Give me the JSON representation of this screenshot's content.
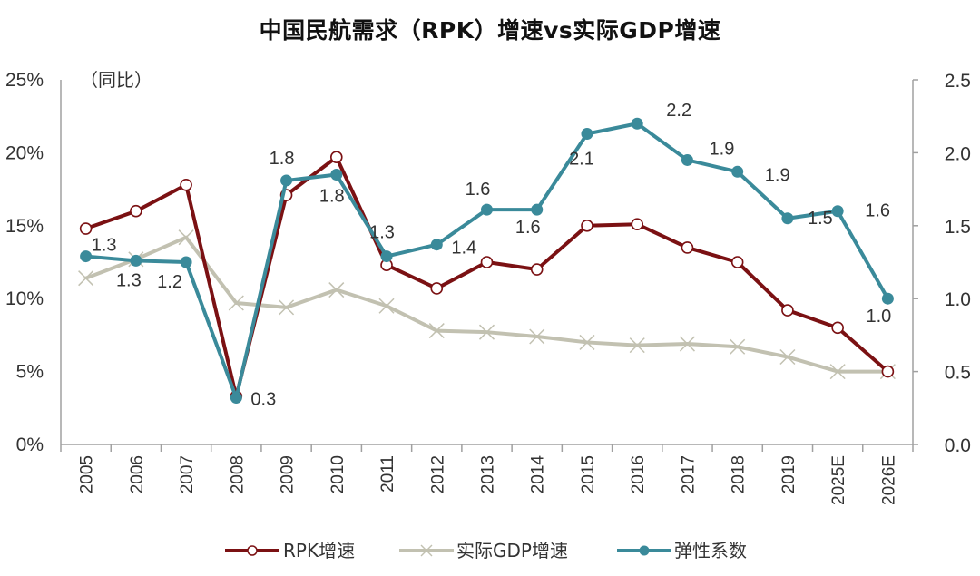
{
  "chart_data": {
    "type": "line",
    "title": "中国民航需求（RPK）增速vs实际GDP增速",
    "y_unit_note": "（同比）",
    "xlabel": "",
    "ylabel": "",
    "categories": [
      "2005",
      "2006",
      "2007",
      "2008",
      "2009",
      "2010",
      "2011",
      "2012",
      "2013",
      "2014",
      "2015",
      "2016",
      "2017",
      "2018",
      "2019",
      "2025E",
      "2026E"
    ],
    "y_left": {
      "range": [
        0,
        25
      ],
      "ticks": [
        0,
        5,
        10,
        15,
        20,
        25
      ],
      "tick_labels": [
        "0%",
        "5%",
        "10%",
        "15%",
        "20%",
        "25%"
      ]
    },
    "y_right": {
      "range": [
        0,
        2.5
      ],
      "ticks": [
        0,
        0.5,
        1.0,
        1.5,
        2.0,
        2.5
      ],
      "tick_labels": [
        "0.0",
        "0.5",
        "1.0",
        "1.5",
        "2.0",
        "2.5"
      ]
    },
    "grid": false,
    "legend_position": "bottom",
    "series": [
      {
        "name": "RPK增速",
        "axis": "left",
        "color": "#7b1113",
        "marker": "open-circle",
        "values": [
          14.8,
          16.0,
          17.8,
          3.3,
          17.1,
          19.7,
          12.3,
          10.7,
          12.5,
          12.0,
          15.0,
          15.1,
          13.5,
          12.5,
          9.2,
          8.0,
          5.0
        ]
      },
      {
        "name": "实际GDP增速",
        "axis": "left",
        "color": "#c2c1b1",
        "marker": "x",
        "values": [
          11.4,
          12.7,
          14.2,
          9.7,
          9.4,
          10.6,
          9.5,
          7.8,
          7.7,
          7.4,
          7.0,
          6.8,
          6.9,
          6.7,
          6.0,
          5.0,
          5.0
        ]
      },
      {
        "name": "弹性系数",
        "axis": "right",
        "color": "#3a8a9a",
        "marker": "filled-circle",
        "values": [
          1.29,
          1.26,
          1.25,
          0.32,
          1.81,
          1.85,
          1.29,
          1.37,
          1.61,
          1.61,
          2.13,
          2.2,
          1.95,
          1.87,
          1.55,
          1.6,
          1.0
        ],
        "data_labels": [
          "1.3",
          "1.3",
          "1.2",
          "0.3",
          "1.8",
          "1.8",
          "1.3",
          "1.4",
          "1.6",
          "1.6",
          "2.1",
          "2.2",
          "1.9",
          "1.9",
          "1.5",
          "1.6",
          "1.0"
        ]
      }
    ]
  }
}
